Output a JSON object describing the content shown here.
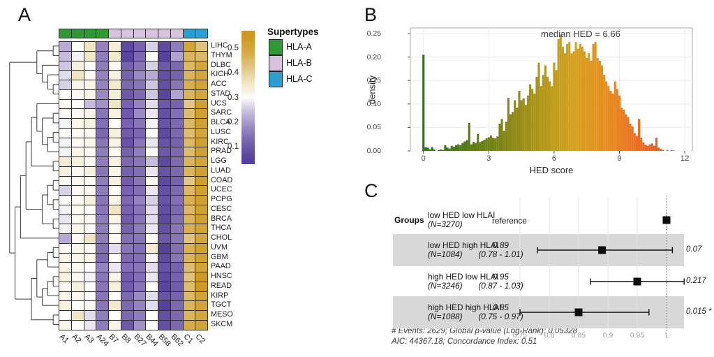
{
  "panel_labels": {
    "a": "A",
    "b": "B",
    "c": "C"
  },
  "chart_data": [
    {
      "id": "hla-supertype-heatmap",
      "type": "heatmap",
      "panel": "A",
      "columns": [
        "A1",
        "A2",
        "A3",
        "A24",
        "B7",
        "B8",
        "B27",
        "B44",
        "B58",
        "B62",
        "C1",
        "C2"
      ],
      "column_supertypes": [
        "HLA-A",
        "HLA-A",
        "HLA-A",
        "HLA-A",
        "HLA-B",
        "HLA-B",
        "HLA-B",
        "HLA-B",
        "HLA-B",
        "HLA-B",
        "HLA-C",
        "HLA-C"
      ],
      "rows": [
        "LIHC",
        "THYM",
        "DLBC",
        "KICH",
        "ACC",
        "STAD",
        "UCS",
        "SARC",
        "BLCA",
        "LUSC",
        "KIRC",
        "PRAD",
        "LGG",
        "LUAD",
        "COAD",
        "UCEC",
        "PCPG",
        "CESC",
        "BRCA",
        "THCA",
        "CHOL",
        "UVM",
        "GBM",
        "PAAD",
        "HNSC",
        "READ",
        "KIRP",
        "TGCT",
        "MESO",
        "SKCM"
      ],
      "values": [
        [
          0.22,
          0.3,
          0.36,
          0.17,
          0.34,
          0.07,
          0.12,
          0.26,
          0.07,
          0.16,
          0.5,
          0.43
        ],
        [
          0.24,
          0.29,
          0.35,
          0.16,
          0.35,
          0.06,
          0.13,
          0.3,
          0.05,
          0.21,
          0.46,
          0.45
        ],
        [
          0.25,
          0.33,
          0.3,
          0.16,
          0.31,
          0.12,
          0.15,
          0.26,
          0.1,
          0.13,
          0.45,
          0.5
        ],
        [
          0.27,
          0.36,
          0.31,
          0.17,
          0.33,
          0.12,
          0.18,
          0.22,
          0.08,
          0.12,
          0.46,
          0.5
        ],
        [
          0.26,
          0.32,
          0.32,
          0.17,
          0.35,
          0.13,
          0.15,
          0.25,
          0.08,
          0.15,
          0.47,
          0.51
        ],
        [
          0.3,
          0.31,
          0.32,
          0.18,
          0.34,
          0.1,
          0.13,
          0.25,
          0.06,
          0.21,
          0.46,
          0.5
        ],
        [
          0.31,
          0.3,
          0.24,
          0.19,
          0.36,
          0.12,
          0.17,
          0.27,
          0.1,
          0.12,
          0.42,
          0.52
        ],
        [
          0.3,
          0.31,
          0.32,
          0.15,
          0.33,
          0.1,
          0.18,
          0.28,
          0.08,
          0.14,
          0.44,
          0.52
        ],
        [
          0.29,
          0.32,
          0.33,
          0.14,
          0.3,
          0.12,
          0.15,
          0.29,
          0.09,
          0.13,
          0.45,
          0.52
        ],
        [
          0.3,
          0.31,
          0.31,
          0.13,
          0.33,
          0.11,
          0.13,
          0.3,
          0.07,
          0.13,
          0.44,
          0.5
        ],
        [
          0.29,
          0.31,
          0.32,
          0.15,
          0.32,
          0.09,
          0.15,
          0.28,
          0.09,
          0.12,
          0.45,
          0.52
        ],
        [
          0.29,
          0.32,
          0.31,
          0.16,
          0.31,
          0.12,
          0.16,
          0.3,
          0.1,
          0.13,
          0.44,
          0.52
        ],
        [
          0.34,
          0.33,
          0.31,
          0.16,
          0.33,
          0.13,
          0.15,
          0.24,
          0.07,
          0.13,
          0.46,
          0.51
        ],
        [
          0.33,
          0.31,
          0.33,
          0.15,
          0.32,
          0.12,
          0.14,
          0.28,
          0.09,
          0.13,
          0.46,
          0.52
        ],
        [
          0.3,
          0.31,
          0.3,
          0.16,
          0.33,
          0.11,
          0.15,
          0.31,
          0.07,
          0.12,
          0.42,
          0.53
        ],
        [
          0.26,
          0.31,
          0.31,
          0.16,
          0.3,
          0.12,
          0.14,
          0.28,
          0.08,
          0.13,
          0.45,
          0.52
        ],
        [
          0.3,
          0.31,
          0.33,
          0.15,
          0.32,
          0.13,
          0.17,
          0.26,
          0.09,
          0.14,
          0.47,
          0.52
        ],
        [
          0.29,
          0.31,
          0.3,
          0.15,
          0.36,
          0.12,
          0.15,
          0.27,
          0.08,
          0.13,
          0.45,
          0.52
        ],
        [
          0.28,
          0.31,
          0.31,
          0.16,
          0.32,
          0.11,
          0.15,
          0.27,
          0.07,
          0.14,
          0.46,
          0.52
        ],
        [
          0.29,
          0.32,
          0.3,
          0.16,
          0.31,
          0.12,
          0.16,
          0.28,
          0.08,
          0.15,
          0.47,
          0.51
        ],
        [
          0.22,
          0.31,
          0.36,
          0.16,
          0.31,
          0.14,
          0.15,
          0.3,
          0.1,
          0.15,
          0.43,
          0.5
        ],
        [
          0.31,
          0.32,
          0.31,
          0.14,
          0.27,
          0.15,
          0.14,
          0.35,
          0.05,
          0.14,
          0.47,
          0.52
        ],
        [
          0.32,
          0.32,
          0.32,
          0.13,
          0.3,
          0.13,
          0.14,
          0.29,
          0.07,
          0.15,
          0.46,
          0.52
        ],
        [
          0.32,
          0.31,
          0.3,
          0.17,
          0.28,
          0.14,
          0.15,
          0.27,
          0.09,
          0.12,
          0.44,
          0.51
        ],
        [
          0.33,
          0.31,
          0.29,
          0.15,
          0.32,
          0.11,
          0.14,
          0.28,
          0.07,
          0.12,
          0.43,
          0.54
        ],
        [
          0.31,
          0.33,
          0.3,
          0.15,
          0.33,
          0.11,
          0.15,
          0.3,
          0.06,
          0.11,
          0.44,
          0.54
        ],
        [
          0.32,
          0.31,
          0.3,
          0.15,
          0.3,
          0.13,
          0.18,
          0.27,
          0.09,
          0.12,
          0.45,
          0.51
        ],
        [
          0.33,
          0.3,
          0.31,
          0.15,
          0.35,
          0.13,
          0.17,
          0.27,
          0.05,
          0.13,
          0.46,
          0.51
        ],
        [
          0.3,
          0.36,
          0.27,
          0.16,
          0.3,
          0.13,
          0.16,
          0.3,
          0.08,
          0.13,
          0.46,
          0.5
        ],
        [
          0.32,
          0.3,
          0.28,
          0.16,
          0.32,
          0.1,
          0.19,
          0.3,
          0.08,
          0.13,
          0.48,
          0.51
        ]
      ],
      "color_stops": [
        [
          0.05,
          "#55409b"
        ],
        [
          0.12,
          "#7662ae"
        ],
        [
          0.18,
          "#9a8ac4"
        ],
        [
          0.24,
          "#c5bcdd"
        ],
        [
          0.3,
          "#fdfdfa"
        ],
        [
          0.36,
          "#f0e6c2"
        ],
        [
          0.42,
          "#e2c685"
        ],
        [
          0.48,
          "#d6ac47"
        ],
        [
          0.55,
          "#cc981d"
        ]
      ],
      "supertype_colors": {
        "HLA-A": "#2f9a32",
        "HLA-B": "#d6c4df",
        "HLA-C": "#2aa0d2"
      },
      "legend": {
        "title": "Supertypes",
        "entries": [
          {
            "label": "HLA-A",
            "color": "#2f9a32"
          },
          {
            "label": "HLA-B",
            "color": "#d6c4df"
          },
          {
            "label": "HLA-C",
            "color": "#2aa0d2"
          }
        ]
      },
      "colorbar": {
        "ticks": [
          "0.5",
          "0.4",
          "0.3",
          "0.2",
          "0.1"
        ],
        "tick_values": [
          0.5,
          0.4,
          0.3,
          0.2,
          0.1
        ],
        "max": 0.57,
        "min": 0.03
      },
      "dendrogram": [
        [
          [
            0,
            1
          ],
          [
            2,
            [
              3,
              [
                4,
                5
              ]
            ]
          ]
        ],
        [
          [
            [
              [
                [
                  6,
                  [
                    [
                      7,
                      8
                    ],
                    [
                      [
                        9,
                        10
                      ],
                      11
                    ]
                  ]
                ],
                [
                  12,
                  13
                ]
              ],
              [
                [
                  [
                    14,
                    15
                  ],
                  [
                    16,
                    17
                  ]
                ],
                [
                  18,
                  19
                ]
              ]
            ],
            20
          ],
          [
            [
              [
                [
                  21,
                  22
                ],
                23
              ],
              [
                [
                  [
                    24,
                    25
                  ],
                  26
                ],
                27
              ]
            ],
            [
              28,
              29
            ]
          ]
        ]
      ]
    },
    {
      "id": "hed-histogram",
      "type": "bar",
      "panel": "B",
      "annotation": "median HED = 6.66",
      "xlabel": "HED score",
      "ylabel": "density",
      "x_ticks": [
        0,
        3,
        6,
        9,
        12
      ],
      "y_ticks": [
        0,
        0.05,
        0.1,
        0.15,
        0.2,
        0.25
      ],
      "y_tick_labels": [
        "0.00",
        "0.05",
        "0.10",
        "0.15",
        "0.20",
        "0.25"
      ],
      "xlim": [
        -0.6,
        12.35
      ],
      "ylim": [
        0,
        0.262
      ],
      "bin_start": 0,
      "bin_width": 0.1,
      "densities": [
        0.205,
        0.008,
        0.007,
        0.003,
        0.008,
        0.003,
        0,
        0.002,
        0.003,
        0.002,
        0.012,
        0.007,
        0.005,
        0.011,
        0.009,
        0.012,
        0.014,
        0.012,
        0.017,
        0.02,
        0.023,
        0.06,
        0.014,
        0.019,
        0.017,
        0.036,
        0.019,
        0.021,
        0.024,
        0.027,
        0.029,
        0.033,
        0.028,
        0.027,
        0.031,
        0.058,
        0.068,
        0.043,
        0.062,
        0.113,
        0.078,
        0.083,
        0.108,
        0.092,
        0.128,
        0.108,
        0.112,
        0.098,
        0.118,
        0.142,
        0.132,
        0.122,
        0.158,
        0.188,
        0.138,
        0.162,
        0.182,
        0.158,
        0.148,
        0.138,
        0.188,
        0.172,
        0.238,
        0.248,
        0.222,
        0.208,
        0.228,
        0.232,
        0.208,
        0.212,
        0.232,
        0.218,
        0.228,
        0.222,
        0.212,
        0.198,
        0.208,
        0.192,
        0.228,
        0.232,
        0.198,
        0.192,
        0.182,
        0.162,
        0.148,
        0.138,
        0.128,
        0.122,
        0.148,
        0.132,
        0.118,
        0.092,
        0.088,
        0.078,
        0.072,
        0.058,
        0.052,
        0.038,
        0.032,
        0.068,
        0.028,
        0.018,
        0.013,
        0.011,
        0.014,
        0.016,
        0.011,
        0.028,
        0.007,
        0.004,
        0.002,
        0,
        0.002,
        0,
        0.002,
        0.001
      ],
      "gradient_stops": [
        [
          0,
          "#26770e"
        ],
        [
          1.5,
          "#477a10"
        ],
        [
          3,
          "#6e8013"
        ],
        [
          4.5,
          "#968c16"
        ],
        [
          6,
          "#c09d1a"
        ],
        [
          7,
          "#d5a01d"
        ],
        [
          8,
          "#e2931e"
        ],
        [
          9,
          "#e98120"
        ],
        [
          10,
          "#eb6a1e"
        ],
        [
          11.5,
          "#ec5720"
        ]
      ]
    },
    {
      "id": "hla-forest-plot",
      "type": "scatter",
      "subtype": "forest-plot",
      "panel": "C",
      "header": "Groups",
      "rows": [
        {
          "group": "low HED low HLAI",
          "n": "(N=3270)",
          "hr_label": "reference",
          "ci_label": "",
          "hr": 1.0,
          "ci_low": null,
          "ci_high": null,
          "p": "",
          "shaded": false
        },
        {
          "group": "low HED high HLAI",
          "n": "(N=1084)",
          "hr_label": "0.89",
          "ci_label": "(0.78 - 1.01)",
          "hr": 0.89,
          "ci_low": 0.78,
          "ci_high": 1.01,
          "p": "0.07",
          "shaded": true
        },
        {
          "group": "high HED low HLAI",
          "n": "(N=3246)",
          "hr_label": "0.95",
          "ci_label": "(0.87 - 1.03)",
          "hr": 0.95,
          "ci_low": 0.87,
          "ci_high": 1.03,
          "p": "0.217",
          "shaded": false
        },
        {
          "group": "high HED high HLAI",
          "n": "(N=1088)",
          "hr_label": "0.85",
          "ci_label": "(0.75 - 0.97)",
          "hr": 0.85,
          "ci_low": 0.75,
          "ci_high": 0.97,
          "p": "0.015 *",
          "shaded": true
        }
      ],
      "x_ticks": [
        0.75,
        0.8,
        0.85,
        0.9,
        0.95,
        1
      ],
      "tick_labels": [
        "0.75",
        "0.8",
        "0.85",
        "0.9",
        "0.95",
        "1"
      ],
      "ref_line": 1,
      "footer_line1": "# Events: 2629; Global p-value (Log-Rank): 0.05328",
      "footer_line2": "AIC: 44367.18; Concordance Index: 0.51",
      "band_color": "#d8d8d8"
    }
  ]
}
